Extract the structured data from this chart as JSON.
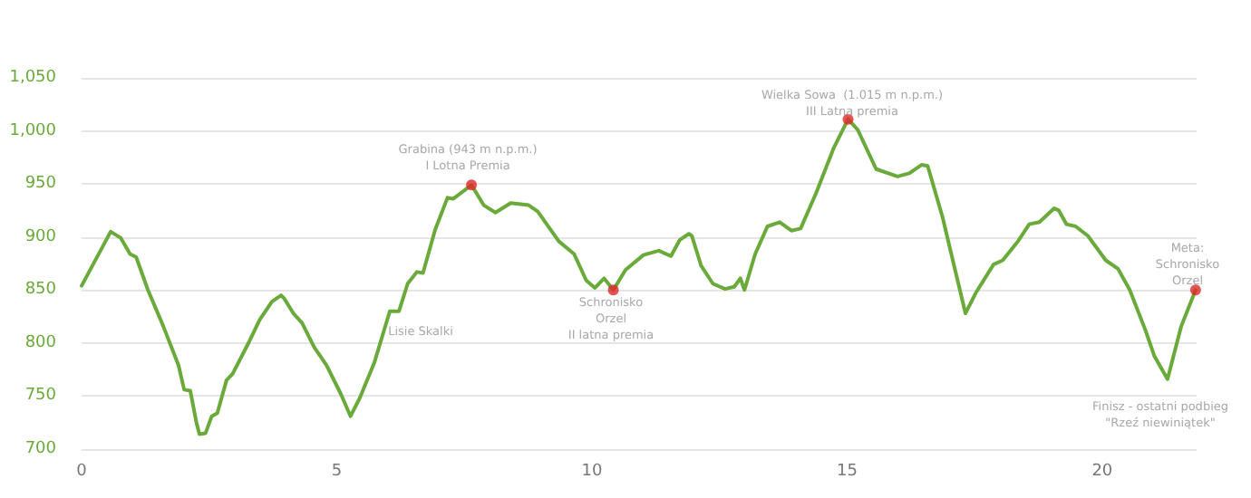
{
  "chart_data": {
    "type": "line",
    "x": [
      0,
      0.57,
      0.77,
      0.95,
      1.07,
      1.3,
      1.6,
      1.9,
      2.01,
      2.13,
      2.25,
      2.31,
      2.43,
      2.55,
      2.66,
      2.84,
      2.96,
      3.26,
      3.49,
      3.73,
      3.91,
      3.97,
      4.15,
      4.32,
      4.56,
      4.8,
      5.09,
      5.27,
      5.45,
      5.74,
      6.04,
      6.22,
      6.39,
      6.57,
      6.69,
      6.93,
      7.17,
      7.28,
      7.64,
      7.88,
      8.11,
      8.41,
      8.76,
      8.94,
      9.35,
      9.65,
      9.89,
      10.06,
      10.24,
      10.42,
      10.66,
      11.01,
      11.31,
      11.55,
      11.72,
      11.9,
      11.96,
      12.14,
      12.37,
      12.61,
      12.79,
      12.91,
      12.99,
      13.2,
      13.44,
      13.68,
      13.91,
      14.09,
      14.39,
      14.74,
      15.02,
      15.21,
      15.57,
      15.99,
      16.22,
      16.46,
      16.58,
      16.87,
      17.32,
      17.52,
      17.87,
      18.05,
      18.35,
      18.57,
      18.77,
      19.06,
      19.15,
      19.3,
      19.48,
      19.72,
      20.07,
      20.31,
      20.54,
      20.84,
      21.02,
      21.28,
      21.55,
      21.83
    ],
    "series": [
      {
        "color": "#6aaa3a",
        "values": [
          854,
          905,
          899,
          884,
          881,
          850,
          816,
          779,
          756,
          755,
          725,
          714,
          715,
          731,
          734,
          765,
          771,
          799,
          822,
          839,
          845,
          842,
          828,
          819,
          796,
          779,
          751,
          731,
          748,
          782,
          830,
          830,
          856,
          867,
          866,
          907,
          937,
          936,
          949,
          930,
          923,
          932,
          930,
          924,
          896,
          884,
          859,
          852,
          861,
          850,
          869,
          883,
          887,
          882,
          897,
          903,
          901,
          873,
          856,
          851,
          853,
          861,
          850,
          884,
          910,
          914,
          906,
          908,
          941,
          984,
          1011,
          1001,
          964,
          957,
          960,
          968,
          967,
          919,
          828,
          847,
          874,
          878,
          896,
          912,
          914,
          927,
          925,
          912,
          910,
          901,
          878,
          870,
          850,
          813,
          788,
          766,
          816,
          850
        ]
      },
      {
        "type": "scatter",
        "marker": "circle",
        "color": "#e02828",
        "x": [
          7.64,
          10.42,
          15.02,
          21.83
        ],
        "values": [
          949,
          850,
          1011,
          850
        ]
      }
    ],
    "xlim": [
      0,
      21.85
    ],
    "xticks": [
      0,
      5,
      10,
      15,
      20
    ],
    "ylim": [
      700,
      1050
    ],
    "yticks": [
      700,
      750,
      800,
      850,
      900,
      950,
      {
        "value": 1000,
        "label": "1,000"
      },
      {
        "value": 1050,
        "label": "1,050"
      }
    ],
    "grid": "y",
    "marker": "none",
    "line_style": "solid",
    "annotations": [
      "Grabina (943 m n.p.m.)\nI Lotna Premia",
      "Lisie Skalki",
      "Schronisko\nOrzel\nII latna premia",
      "Wielka Sowa  (1.015 m n.p.m.)\nIII Latna premia",
      "Meta:\nSchronisko\nOrzel",
      "Finisz - ostatni podbieg\n\"Rzeź niewiniątek\""
    ]
  }
}
